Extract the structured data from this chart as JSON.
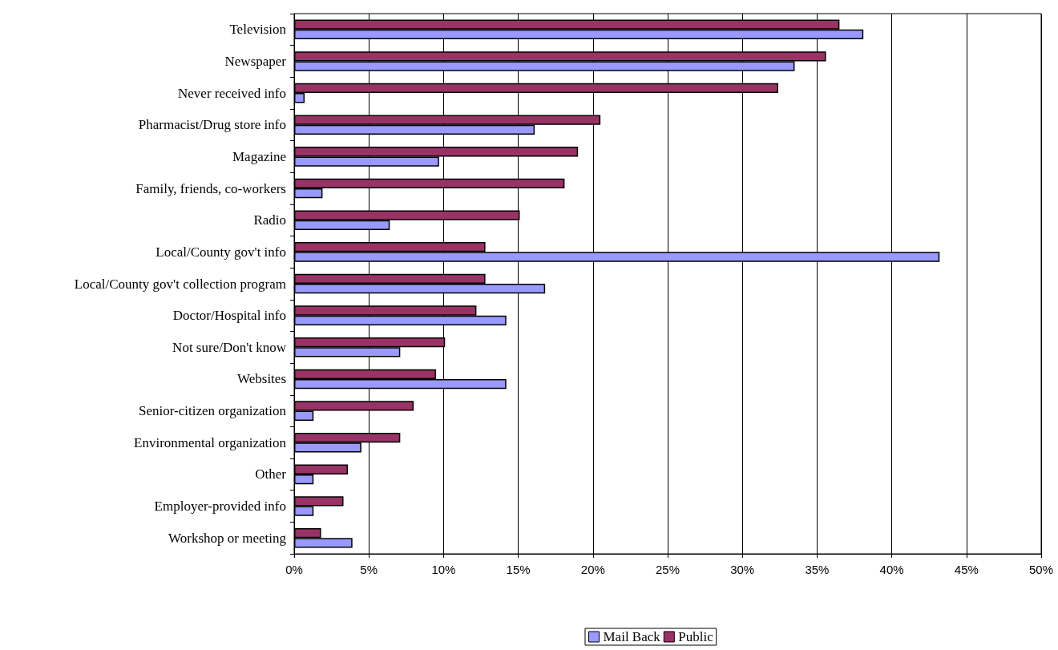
{
  "chart_data": {
    "type": "bar",
    "orientation": "horizontal",
    "categories": [
      "Television",
      "Newspaper",
      "Never received info",
      "Pharmacist/Drug store info",
      "Magazine",
      "Family, friends, co-workers",
      "Radio",
      "Local/County gov't info",
      "Local/County gov't collection program",
      "Doctor/Hospital info",
      "Not sure/Don't know",
      "Websites",
      "Senior-citizen organization",
      "Environmental organization",
      "Other",
      "Employer-provided info",
      "Workshop or meeting"
    ],
    "series": [
      {
        "name": "Mail Back",
        "color": "#9999ff",
        "values": [
          38.1,
          33.5,
          0.7,
          16.1,
          9.7,
          1.9,
          6.4,
          43.2,
          16.8,
          14.2,
          7.1,
          14.2,
          1.3,
          4.5,
          1.3,
          1.3,
          3.9
        ]
      },
      {
        "name": "Public",
        "color": "#993366",
        "values": [
          36.5,
          35.6,
          32.4,
          20.5,
          19.0,
          18.1,
          15.1,
          12.8,
          12.8,
          12.2,
          10.1,
          9.5,
          8.0,
          7.1,
          3.6,
          3.3,
          1.8
        ]
      }
    ],
    "xlim": [
      0,
      50
    ],
    "xticks": [
      {
        "value": 0,
        "label": "0%"
      },
      {
        "value": 5,
        "label": "5%"
      },
      {
        "value": 10,
        "label": "10%"
      },
      {
        "value": 15,
        "label": "15%"
      },
      {
        "value": 20,
        "label": "20%"
      },
      {
        "value": 25,
        "label": "25%"
      },
      {
        "value": 30,
        "label": "30%"
      },
      {
        "value": 35,
        "label": "35%"
      },
      {
        "value": 40,
        "label": "40%"
      },
      {
        "value": 45,
        "label": "45%"
      },
      {
        "value": 50,
        "label": "50%"
      }
    ],
    "grid": "x",
    "legend": "bottom"
  }
}
